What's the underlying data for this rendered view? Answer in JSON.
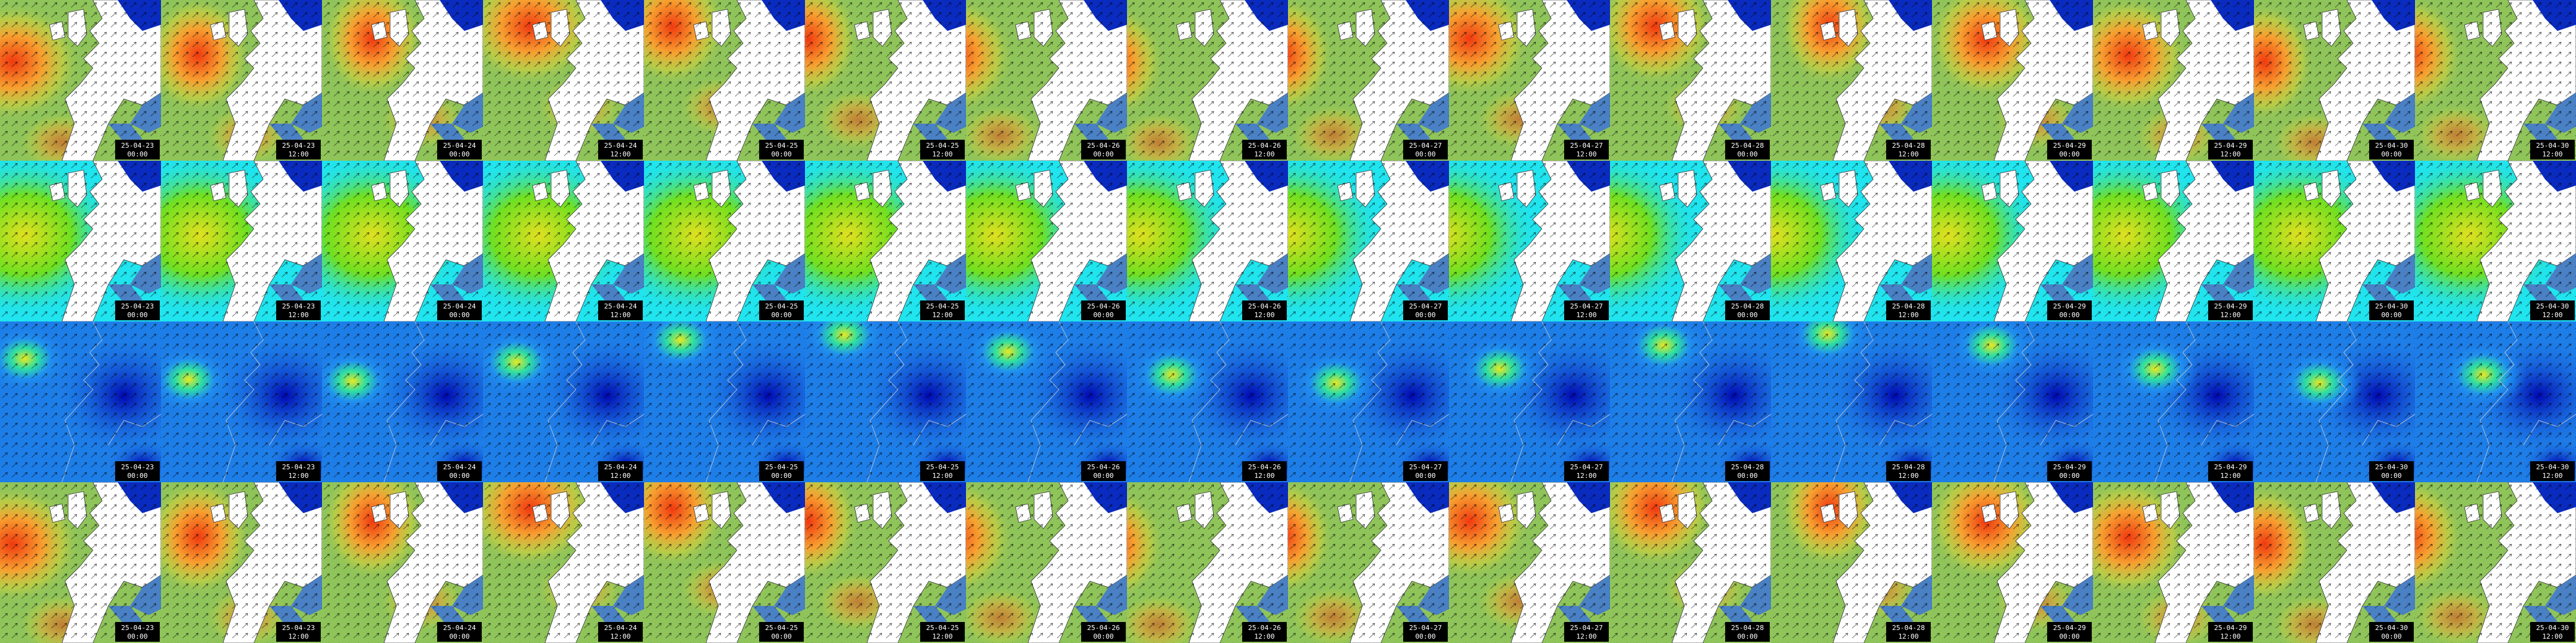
{
  "columns": [
    {
      "date": "25-04-23",
      "time": "00:00"
    },
    {
      "date": "25-04-23",
      "time": "12:00"
    },
    {
      "date": "25-04-24",
      "time": "00:00"
    },
    {
      "date": "25-04-24",
      "time": "12:00"
    },
    {
      "date": "25-04-25",
      "time": "00:00"
    },
    {
      "date": "25-04-25",
      "time": "12:00"
    },
    {
      "date": "25-04-26",
      "time": "00:00"
    },
    {
      "date": "25-04-26",
      "time": "12:00"
    },
    {
      "date": "25-04-27",
      "time": "00:00"
    },
    {
      "date": "25-04-27",
      "time": "12:00"
    },
    {
      "date": "25-04-28",
      "time": "00:00"
    },
    {
      "date": "25-04-28",
      "time": "12:00"
    },
    {
      "date": "25-04-29",
      "time": "00:00"
    },
    {
      "date": "25-04-29",
      "time": "12:00"
    },
    {
      "date": "25-04-30",
      "time": "00:00"
    },
    {
      "date": "25-04-30",
      "time": "12:00"
    }
  ]
}
